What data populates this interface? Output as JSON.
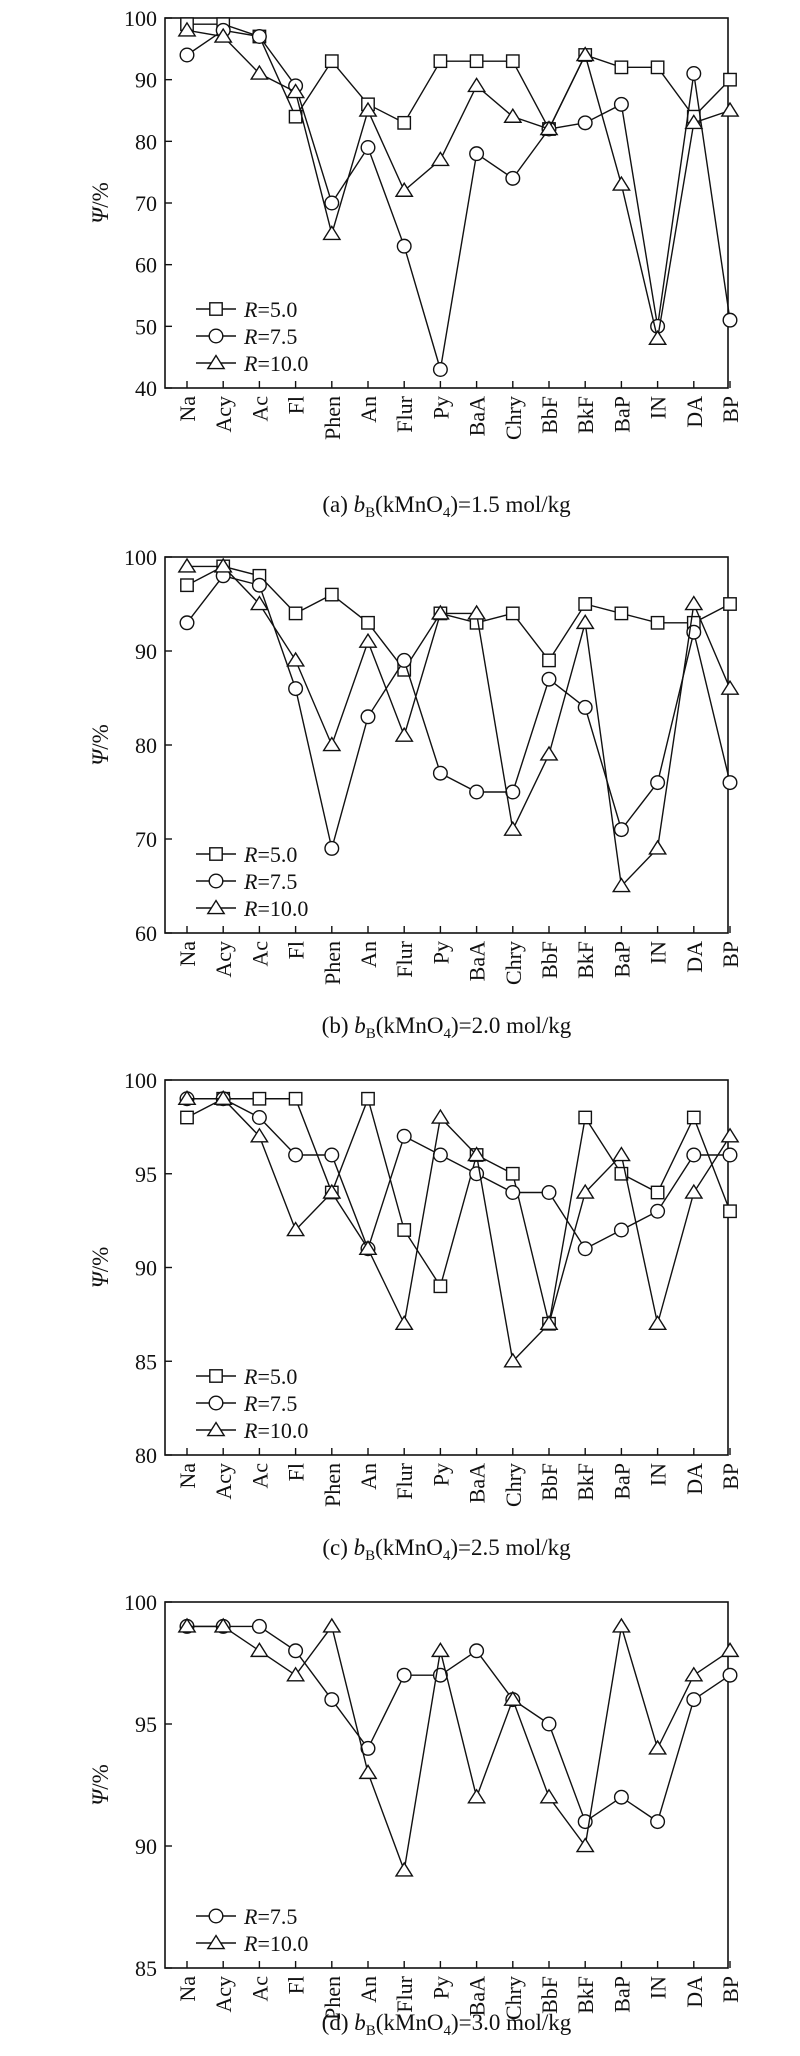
{
  "figure": {
    "ylabel_main": "Ψ",
    "ylabel_unit": "/%",
    "categories": [
      "Na",
      "Acy",
      "Ac",
      "Fl",
      "Phen",
      "An",
      "Flur",
      "Py",
      "BaA",
      "Chry",
      "BbF",
      "BkF",
      "BaP",
      "IN",
      "DA",
      "BP"
    ]
  },
  "chart_data": [
    {
      "type": "line",
      "caption_prefix": "(a)",
      "caption_var": "b",
      "caption_sub": "B",
      "caption_formula": "(kMnO",
      "caption_formula_sub": "4",
      "caption_rest": ")=1.5 mol/kg",
      "ylabel": "Ψ/%",
      "ylim": [
        40,
        100
      ],
      "yticks": [
        40,
        50,
        60,
        70,
        80,
        90,
        100
      ],
      "categories": [
        "Na",
        "Acy",
        "Ac",
        "Fl",
        "Phen",
        "An",
        "Flur",
        "Py",
        "BaA",
        "Chry",
        "BbF",
        "BkF",
        "BaP",
        "IN",
        "DA",
        "BP"
      ],
      "series": [
        {
          "name": "R=5.0",
          "legend_var": "R",
          "legend_value": "=5.0",
          "marker": "square",
          "values": [
            99,
            99,
            97,
            84,
            93,
            86,
            83,
            93,
            93,
            93,
            82,
            94,
            92,
            92,
            84,
            90
          ]
        },
        {
          "name": "R=7.5",
          "legend_var": "R",
          "legend_value": "=7.5",
          "marker": "circle",
          "values": [
            94,
            98,
            97,
            89,
            70,
            79,
            63,
            43,
            78,
            74,
            82,
            83,
            86,
            50,
            91,
            51
          ]
        },
        {
          "name": "R=10.0",
          "legend_var": "R",
          "legend_value": "=10.0",
          "marker": "triangle",
          "values": [
            98,
            97,
            91,
            88,
            65,
            85,
            72,
            77,
            89,
            84,
            82,
            94,
            73,
            48,
            83,
            85
          ]
        }
      ],
      "grid": false,
      "legend_position": "bottom-left"
    },
    {
      "type": "line",
      "caption_prefix": "(b)",
      "caption_var": "b",
      "caption_sub": "B",
      "caption_formula": "(kMnO",
      "caption_formula_sub": "4",
      "caption_rest": ")=2.0 mol/kg",
      "ylabel": "Ψ/%",
      "ylim": [
        60,
        100
      ],
      "yticks": [
        60,
        70,
        80,
        90,
        100
      ],
      "categories": [
        "Na",
        "Acy",
        "Ac",
        "Fl",
        "Phen",
        "An",
        "Flur",
        "Py",
        "BaA",
        "Chry",
        "BbF",
        "BkF",
        "BaP",
        "IN",
        "DA",
        "BP"
      ],
      "series": [
        {
          "name": "R=5.0",
          "legend_var": "R",
          "legend_value": "=5.0",
          "marker": "square",
          "values": [
            97,
            99,
            98,
            94,
            96,
            93,
            88,
            94,
            93,
            94,
            89,
            95,
            94,
            93,
            93,
            95
          ]
        },
        {
          "name": "R=7.5",
          "legend_var": "R",
          "legend_value": "=7.5",
          "marker": "circle",
          "values": [
            93,
            98,
            97,
            86,
            69,
            83,
            89,
            77,
            75,
            75,
            87,
            84,
            71,
            76,
            92,
            76
          ]
        },
        {
          "name": "R=10.0",
          "legend_var": "R",
          "legend_value": "=10.0",
          "marker": "triangle",
          "values": [
            99,
            99,
            95,
            89,
            80,
            91,
            81,
            94,
            94,
            71,
            79,
            93,
            65,
            69,
            95,
            86
          ]
        }
      ],
      "grid": false,
      "legend_position": "bottom-left"
    },
    {
      "type": "line",
      "caption_prefix": "(c)",
      "caption_var": "b",
      "caption_sub": "B",
      "caption_formula": "(kMnO",
      "caption_formula_sub": "4",
      "caption_rest": ")=2.5 mol/kg",
      "ylabel": "Ψ/%",
      "ylim": [
        80,
        100
      ],
      "yticks": [
        80,
        85,
        90,
        95,
        100
      ],
      "categories": [
        "Na",
        "Acy",
        "Ac",
        "Fl",
        "Phen",
        "An",
        "Flur",
        "Py",
        "BaA",
        "Chry",
        "BbF",
        "BkF",
        "BaP",
        "IN",
        "DA",
        "BP"
      ],
      "series": [
        {
          "name": "R=5.0",
          "legend_var": "R",
          "legend_value": "=5.0",
          "marker": "square",
          "values": [
            98,
            99,
            99,
            99,
            94,
            99,
            92,
            89,
            96,
            95,
            87,
            98,
            95,
            94,
            98,
            93
          ]
        },
        {
          "name": "R=7.5",
          "legend_var": "R",
          "legend_value": "=7.5",
          "marker": "circle",
          "values": [
            99,
            99,
            98,
            96,
            96,
            91,
            97,
            96,
            95,
            94,
            94,
            91,
            92,
            93,
            96,
            96
          ]
        },
        {
          "name": "R=10.0",
          "legend_var": "R",
          "legend_value": "=10.0",
          "marker": "triangle",
          "values": [
            99,
            99,
            97,
            92,
            94,
            91,
            87,
            98,
            96,
            85,
            87,
            94,
            96,
            87,
            94,
            97
          ]
        }
      ],
      "grid": false,
      "legend_position": "bottom-left"
    },
    {
      "type": "line",
      "caption_prefix": "(d)",
      "caption_var": "b",
      "caption_sub": "B",
      "caption_formula": "(kMnO",
      "caption_formula_sub": "4",
      "caption_rest": ")=3.0 mol/kg",
      "ylabel": "Ψ/%",
      "ylim": [
        85,
        100
      ],
      "yticks": [
        85,
        90,
        95,
        100
      ],
      "categories": [
        "Na",
        "Acy",
        "Ac",
        "Fl",
        "Phen",
        "An",
        "Flur",
        "Py",
        "BaA",
        "Chry",
        "BbF",
        "BkF",
        "BaP",
        "IN",
        "DA",
        "BP"
      ],
      "series": [
        {
          "name": "R=7.5",
          "legend_var": "R",
          "legend_value": "=7.5",
          "marker": "circle",
          "values": [
            99,
            99,
            99,
            98,
            96,
            94,
            97,
            97,
            98,
            96,
            95,
            91,
            92,
            91,
            96,
            97
          ]
        },
        {
          "name": "R=10.0",
          "legend_var": "R",
          "legend_value": "=10.0",
          "marker": "triangle",
          "values": [
            99,
            99,
            98,
            97,
            99,
            93,
            89,
            98,
            92,
            96,
            92,
            90,
            99,
            94,
            97,
            98
          ]
        }
      ],
      "grid": false,
      "legend_position": "bottom-left"
    }
  ]
}
